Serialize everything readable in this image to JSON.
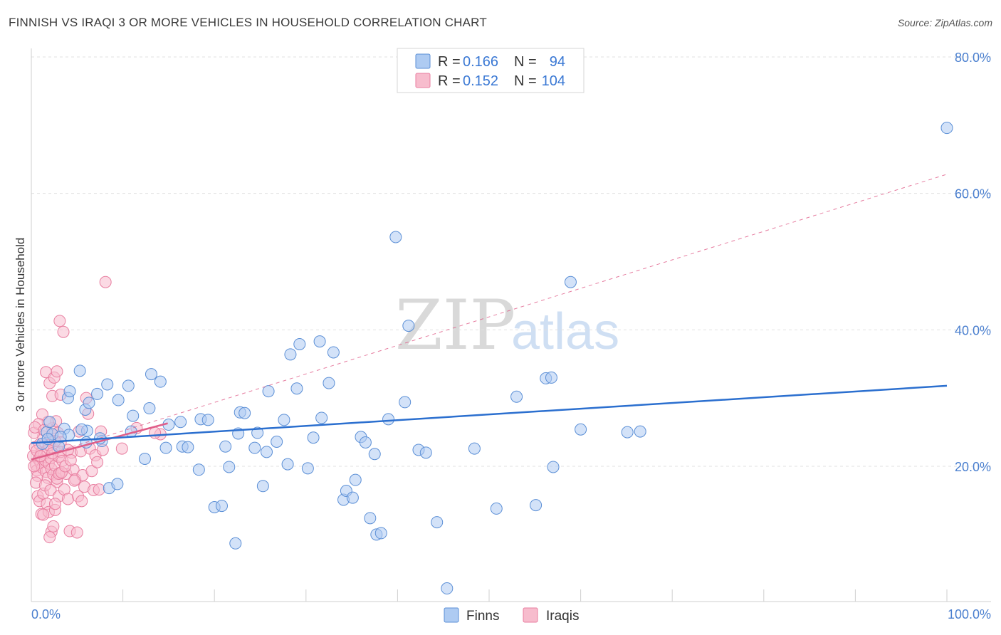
{
  "title": "FINNISH VS IRAQI 3 OR MORE VEHICLES IN HOUSEHOLD CORRELATION CHART",
  "source": "Source: ZipAtlas.com",
  "watermark": {
    "zip": "ZIP",
    "atlas": "atlas"
  },
  "colors": {
    "finns_fill": "#aecbf2",
    "finns_stroke": "#5b8fd6",
    "finns_line": "#2b6fcf",
    "iraqis_fill": "#f7bccd",
    "iraqis_stroke": "#e87ea0",
    "iraqis_line": "#e05d88",
    "tick_text": "#4a7fcf",
    "grid": "#e0e0e0"
  },
  "legend": {
    "rows": [
      {
        "r_label": "R =",
        "r_value": "0.166",
        "n_label": "N =",
        "n_value": "94"
      },
      {
        "r_label": "R =",
        "r_value": "0.152",
        "n_label": "N =",
        "n_value": "104"
      }
    ]
  },
  "bottom_legend": [
    "Finns",
    "Iraqis"
  ],
  "chart_data": {
    "type": "scatter",
    "title": "FINNISH VS IRAQI 3 OR MORE VEHICLES IN HOUSEHOLD CORRELATION CHART",
    "xlabel": "",
    "ylabel": "3 or more Vehicles in Household",
    "xlim": [
      0,
      100
    ],
    "ylim": [
      0,
      84
    ],
    "x_tick_labels": [
      "0.0%",
      "100.0%"
    ],
    "y_ticks": [
      20,
      40,
      60,
      80
    ],
    "y_tick_labels": [
      "20.0%",
      "40.0%",
      "60.0%",
      "80.0%"
    ],
    "grid": true,
    "series": [
      {
        "name": "Finns",
        "r": 0.166,
        "n": 94,
        "trend": {
          "x": [
            0,
            100
          ],
          "y": [
            23.4,
            31.8
          ]
        },
        "points": [
          [
            3.6,
            25.5
          ],
          [
            4.0,
            30.0
          ],
          [
            5.3,
            34.0
          ],
          [
            4.2,
            31.0
          ],
          [
            5.9,
            28.3
          ],
          [
            6.3,
            29.3
          ],
          [
            7.2,
            30.6
          ],
          [
            8.3,
            32.0
          ],
          [
            9.5,
            29.7
          ],
          [
            10.6,
            31.8
          ],
          [
            11.1,
            27.4
          ],
          [
            13.1,
            33.5
          ],
          [
            14.1,
            32.4
          ],
          [
            14.7,
            22.7
          ],
          [
            16.3,
            26.5
          ],
          [
            16.5,
            22.9
          ],
          [
            17.1,
            22.8
          ],
          [
            18.5,
            26.9
          ],
          [
            18.3,
            19.5
          ],
          [
            20.0,
            14.0
          ],
          [
            20.8,
            14.2
          ],
          [
            21.2,
            22.9
          ],
          [
            21.6,
            19.9
          ],
          [
            22.3,
            8.7
          ],
          [
            22.8,
            27.9
          ],
          [
            23.3,
            27.8
          ],
          [
            22.6,
            24.8
          ],
          [
            24.4,
            22.7
          ],
          [
            24.7,
            24.9
          ],
          [
            25.3,
            17.1
          ],
          [
            25.9,
            31.0
          ],
          [
            25.7,
            22.1
          ],
          [
            26.8,
            23.6
          ],
          [
            27.6,
            26.8
          ],
          [
            28.0,
            20.3
          ],
          [
            28.3,
            36.4
          ],
          [
            29.0,
            31.4
          ],
          [
            29.3,
            37.9
          ],
          [
            30.2,
            19.7
          ],
          [
            30.8,
            24.2
          ],
          [
            31.5,
            38.3
          ],
          [
            31.7,
            27.1
          ],
          [
            32.5,
            32.2
          ],
          [
            33.0,
            36.7
          ],
          [
            34.1,
            15.1
          ],
          [
            34.4,
            16.4
          ],
          [
            35.1,
            15.4
          ],
          [
            35.4,
            18.0
          ],
          [
            36.0,
            24.3
          ],
          [
            36.5,
            23.5
          ],
          [
            37.0,
            12.4
          ],
          [
            37.5,
            21.8
          ],
          [
            37.7,
            10.0
          ],
          [
            38.2,
            10.2
          ],
          [
            39.0,
            26.9
          ],
          [
            39.8,
            53.6
          ],
          [
            41.2,
            40.6
          ],
          [
            40.8,
            29.4
          ],
          [
            42.3,
            22.4
          ],
          [
            43.1,
            22.0
          ],
          [
            44.3,
            11.8
          ],
          [
            45.4,
            2.1
          ],
          [
            48.4,
            22.6
          ],
          [
            50.8,
            13.8
          ],
          [
            53.0,
            30.2
          ],
          [
            55.1,
            14.3
          ],
          [
            56.2,
            32.9
          ],
          [
            57.0,
            19.9
          ],
          [
            58.9,
            47.0
          ],
          [
            60.0,
            25.4
          ],
          [
            65.1,
            25.0
          ],
          [
            66.5,
            25.1
          ],
          [
            1.7,
            25.0
          ],
          [
            2.3,
            24.7
          ],
          [
            3.0,
            22.9
          ],
          [
            1.2,
            23.3
          ],
          [
            2.0,
            26.5
          ],
          [
            6.1,
            25.2
          ],
          [
            5.5,
            25.4
          ],
          [
            7.7,
            23.7
          ],
          [
            8.5,
            16.8
          ],
          [
            9.4,
            17.4
          ],
          [
            7.5,
            24.1
          ],
          [
            4.1,
            24.6
          ],
          [
            6.0,
            23.5
          ],
          [
            12.9,
            28.5
          ],
          [
            12.4,
            21.1
          ],
          [
            15.0,
            26.1
          ],
          [
            19.3,
            26.8
          ],
          [
            100.0,
            69.6
          ],
          [
            56.8,
            33.0
          ],
          [
            10.9,
            25.1
          ],
          [
            3.2,
            24.3
          ],
          [
            1.8,
            24.0
          ]
        ]
      },
      {
        "name": "Iraqis",
        "r": 0.152,
        "n": 104,
        "trend": {
          "x": [
            0,
            14.9
          ],
          "y": [
            21.0,
            26.3
          ]
        },
        "trend_extension": {
          "x": [
            0,
            100
          ],
          "y": [
            21.0,
            62.8
          ]
        },
        "points": [
          [
            0.2,
            21.5
          ],
          [
            0.4,
            22.8
          ],
          [
            0.5,
            20.2
          ],
          [
            0.6,
            19.4
          ],
          [
            0.7,
            18.6
          ],
          [
            0.8,
            21.0
          ],
          [
            0.9,
            23.2
          ],
          [
            1.0,
            20.5
          ],
          [
            1.1,
            22.0
          ],
          [
            1.2,
            19.8
          ],
          [
            1.3,
            24.4
          ],
          [
            1.4,
            21.7
          ],
          [
            1.5,
            20.9
          ],
          [
            1.6,
            19.2
          ],
          [
            1.7,
            22.3
          ],
          [
            1.8,
            18.3
          ],
          [
            1.9,
            20.4
          ],
          [
            2.0,
            23.8
          ],
          [
            2.1,
            21.2
          ],
          [
            2.2,
            19.6
          ],
          [
            2.3,
            25.6
          ],
          [
            2.4,
            18.8
          ],
          [
            2.5,
            22.5
          ],
          [
            2.6,
            20.1
          ],
          [
            2.7,
            26.6
          ],
          [
            2.8,
            17.7
          ],
          [
            2.9,
            24.9
          ],
          [
            3.0,
            21.4
          ],
          [
            3.1,
            19.0
          ],
          [
            3.2,
            23.5
          ],
          [
            0.3,
            24.9
          ],
          [
            0.5,
            17.6
          ],
          [
            0.7,
            15.6
          ],
          [
            0.9,
            14.9
          ],
          [
            1.1,
            13.0
          ],
          [
            1.3,
            16.0
          ],
          [
            1.5,
            17.2
          ],
          [
            1.7,
            14.5
          ],
          [
            1.9,
            13.3
          ],
          [
            2.1,
            16.5
          ],
          [
            2.2,
            10.4
          ],
          [
            2.4,
            11.2
          ],
          [
            2.6,
            13.6
          ],
          [
            2.8,
            18.2
          ],
          [
            3.0,
            15.6
          ],
          [
            3.2,
            22.1
          ],
          [
            3.4,
            20.8
          ],
          [
            3.6,
            16.6
          ],
          [
            3.8,
            18.9
          ],
          [
            4.0,
            15.2
          ],
          [
            4.2,
            10.5
          ],
          [
            4.4,
            22.0
          ],
          [
            4.6,
            19.5
          ],
          [
            4.8,
            18.1
          ],
          [
            5.0,
            10.3
          ],
          [
            5.2,
            25.1
          ],
          [
            5.4,
            22.2
          ],
          [
            5.6,
            18.7
          ],
          [
            5.8,
            17.0
          ],
          [
            6.0,
            30.0
          ],
          [
            6.2,
            27.7
          ],
          [
            6.4,
            22.6
          ],
          [
            6.6,
            19.3
          ],
          [
            6.8,
            16.5
          ],
          [
            7.0,
            21.6
          ],
          [
            7.2,
            20.6
          ],
          [
            7.4,
            16.6
          ],
          [
            7.6,
            25.1
          ],
          [
            7.8,
            22.4
          ],
          [
            1.6,
            33.8
          ],
          [
            2.0,
            32.2
          ],
          [
            2.3,
            30.3
          ],
          [
            2.5,
            33.0
          ],
          [
            2.8,
            33.9
          ],
          [
            3.1,
            41.3
          ],
          [
            3.5,
            39.7
          ],
          [
            3.2,
            30.5
          ],
          [
            1.8,
            26.5
          ],
          [
            1.2,
            27.6
          ],
          [
            0.8,
            26.2
          ],
          [
            0.4,
            25.7
          ],
          [
            0.3,
            20.0
          ],
          [
            0.6,
            22.3
          ],
          [
            1.0,
            21.5
          ],
          [
            1.4,
            25.3
          ],
          [
            1.9,
            23.1
          ],
          [
            2.3,
            21.9
          ],
          [
            2.6,
            23.7
          ],
          [
            3.0,
            18.9
          ],
          [
            3.3,
            19.1
          ],
          [
            3.7,
            20.0
          ],
          [
            4.0,
            22.4
          ],
          [
            4.3,
            20.9
          ],
          [
            4.7,
            17.9
          ],
          [
            5.1,
            15.6
          ],
          [
            5.5,
            14.9
          ],
          [
            1.3,
            12.9
          ],
          [
            2.0,
            9.6
          ],
          [
            2.6,
            14.5
          ],
          [
            8.1,
            47.0
          ],
          [
            11.5,
            25.6
          ],
          [
            14.1,
            24.7
          ],
          [
            13.5,
            24.9
          ],
          [
            9.9,
            22.6
          ]
        ]
      }
    ]
  }
}
